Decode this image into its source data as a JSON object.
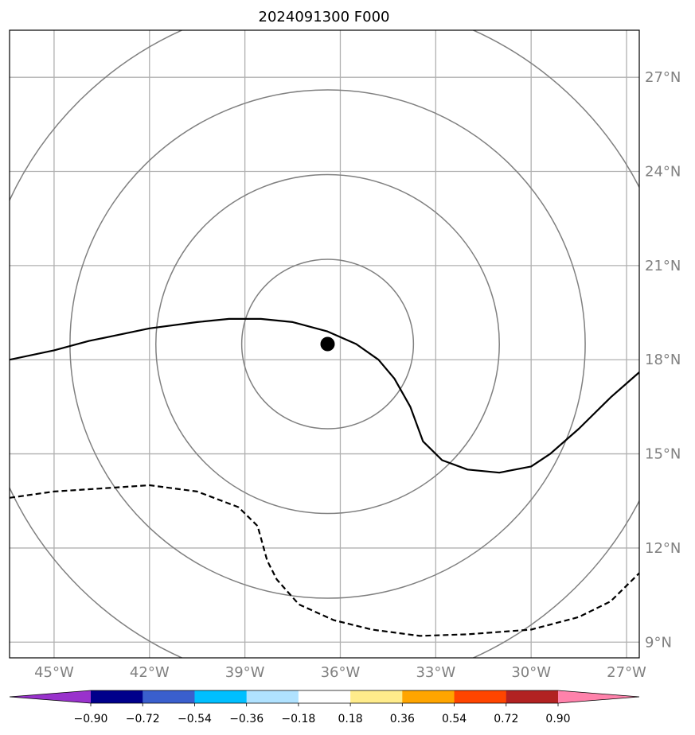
{
  "map": {
    "title": "2024091300 F000",
    "lon_range": [
      -46.4,
      -26.6
    ],
    "lat_range": [
      8.5,
      28.5
    ],
    "lon_ticks": [
      {
        "value": -45,
        "label": "45°W"
      },
      {
        "value": -42,
        "label": "42°W"
      },
      {
        "value": -39,
        "label": "39°W"
      },
      {
        "value": -36,
        "label": "36°W"
      },
      {
        "value": -33,
        "label": "33°W"
      },
      {
        "value": -30,
        "label": "30°W"
      },
      {
        "value": -27,
        "label": "27°W"
      }
    ],
    "lat_ticks": [
      {
        "value": 9,
        "label": "9°N"
      },
      {
        "value": 12,
        "label": "12°N"
      },
      {
        "value": 15,
        "label": "15°N"
      },
      {
        "value": 18,
        "label": "18°N"
      },
      {
        "value": 21,
        "label": "21°N"
      },
      {
        "value": 24,
        "label": "24°N"
      },
      {
        "value": 27,
        "label": "27°N"
      }
    ],
    "gridlines": true,
    "center": {
      "lon": -36.4,
      "lat": 18.5
    },
    "range_rings_deg": [
      2.7,
      5.4,
      8.1,
      11.0
    ],
    "contours": [
      {
        "style": "solid",
        "points": [
          [
            -46.4,
            18.0
          ],
          [
            -45.0,
            18.3
          ],
          [
            -43.9,
            18.6
          ],
          [
            -42.0,
            19.0
          ],
          [
            -40.5,
            19.2
          ],
          [
            -39.5,
            19.3
          ],
          [
            -38.5,
            19.3
          ],
          [
            -37.5,
            19.2
          ],
          [
            -36.4,
            18.9
          ],
          [
            -35.5,
            18.5
          ],
          [
            -34.8,
            18.0
          ],
          [
            -34.3,
            17.4
          ],
          [
            -33.8,
            16.5
          ],
          [
            -33.4,
            15.4
          ],
          [
            -32.8,
            14.8
          ],
          [
            -32.0,
            14.5
          ],
          [
            -31.0,
            14.4
          ],
          [
            -30.0,
            14.6
          ],
          [
            -29.4,
            15.0
          ],
          [
            -28.5,
            15.8
          ],
          [
            -27.5,
            16.8
          ],
          [
            -26.6,
            17.6
          ]
        ]
      },
      {
        "style": "dashed",
        "points": [
          [
            -46.4,
            13.6
          ],
          [
            -45.0,
            13.8
          ],
          [
            -43.5,
            13.9
          ],
          [
            -42.0,
            14.0
          ],
          [
            -40.5,
            13.8
          ],
          [
            -39.2,
            13.3
          ],
          [
            -38.6,
            12.7
          ],
          [
            -38.3,
            11.6
          ],
          [
            -38.0,
            11.0
          ],
          [
            -37.3,
            10.2
          ],
          [
            -36.2,
            9.7
          ],
          [
            -35.0,
            9.4
          ],
          [
            -33.5,
            9.2
          ],
          [
            -32.0,
            9.25
          ],
          [
            -30.0,
            9.4
          ],
          [
            -28.5,
            9.8
          ],
          [
            -27.5,
            10.3
          ],
          [
            -26.6,
            11.2
          ]
        ]
      }
    ]
  },
  "colorbar": {
    "colors": [
      "#9932cc",
      "#00008b",
      "#3a5fcd",
      "#00bfff",
      "#b0e2ff",
      "#ffffff",
      "#ffec8b",
      "#ffa500",
      "#ff4500",
      "#b22222",
      "#ff82ab"
    ],
    "labels": [
      "−0.90",
      "−0.72",
      "−0.54",
      "−0.36",
      "−0.18",
      "0.18",
      "0.36",
      "0.54",
      "0.72",
      "0.90"
    ],
    "extend": "both"
  }
}
